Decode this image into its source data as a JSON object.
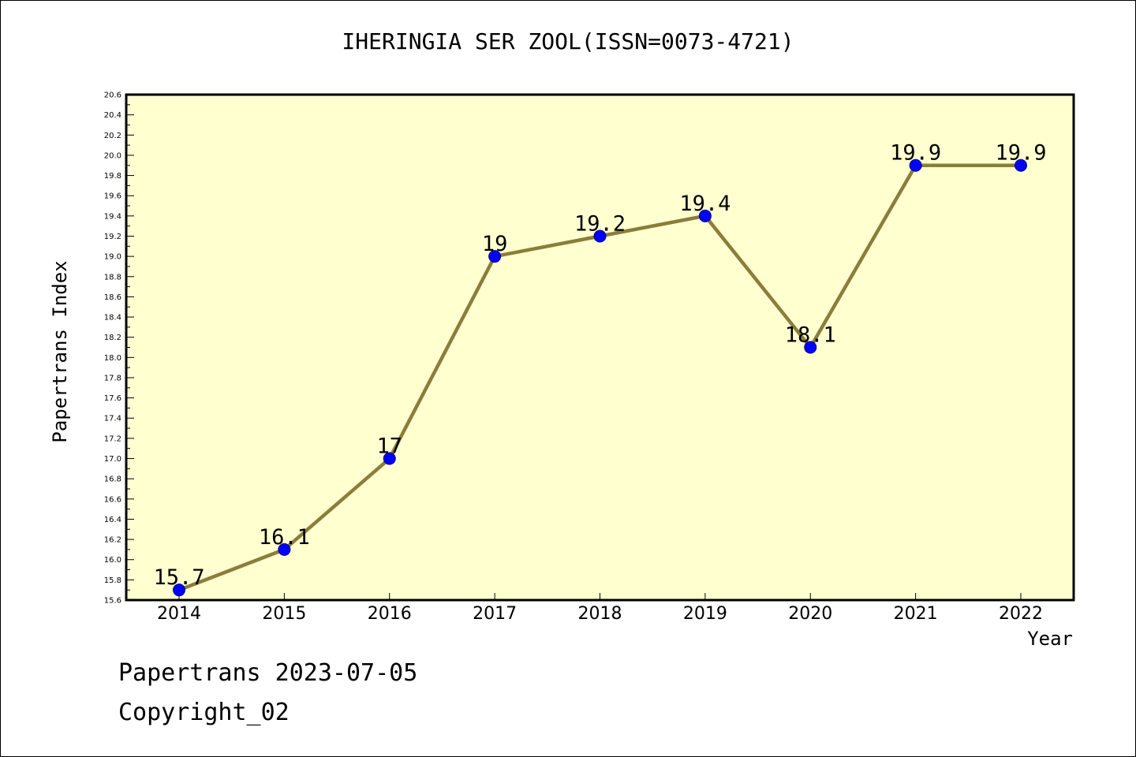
{
  "chart_data": {
    "type": "line",
    "title": "IHERINGIA SER ZOOL(ISSN=0073-4721)",
    "xlabel": "Year",
    "ylabel": "Papertrans Index",
    "categories": [
      "2014",
      "2015",
      "2016",
      "2017",
      "2018",
      "2019",
      "2020",
      "2021",
      "2022"
    ],
    "values": [
      15.7,
      16.1,
      17,
      19,
      19.2,
      19.4,
      18.1,
      19.9,
      19.9
    ],
    "data_labels": [
      "15.7",
      "16.1",
      "17",
      "19",
      "19.2",
      "19.4",
      "18.1",
      "19.9",
      "19.9"
    ],
    "ylim": [
      15.6,
      20.6
    ],
    "y_ticks": [
      "15.6",
      "15.8",
      "16.0",
      "16.2",
      "16.4",
      "16.6",
      "16.8",
      "17.0",
      "17.2",
      "17.4",
      "17.6",
      "17.8",
      "18.0",
      "18.2",
      "18.4",
      "18.6",
      "18.8",
      "19.0",
      "19.2",
      "19.4",
      "19.6",
      "19.8",
      "20.0",
      "20.2",
      "20.4",
      "20.6"
    ],
    "grid": false,
    "legend": "none",
    "colors": {
      "plot_background": "#ffffd0",
      "line": "#8b7d3a",
      "marker": "#0000ff",
      "marker_edge": "#000080",
      "axis": "#000000"
    }
  },
  "footer": {
    "line1": "Papertrans 2023-07-05",
    "line2": "Copyright_02"
  }
}
